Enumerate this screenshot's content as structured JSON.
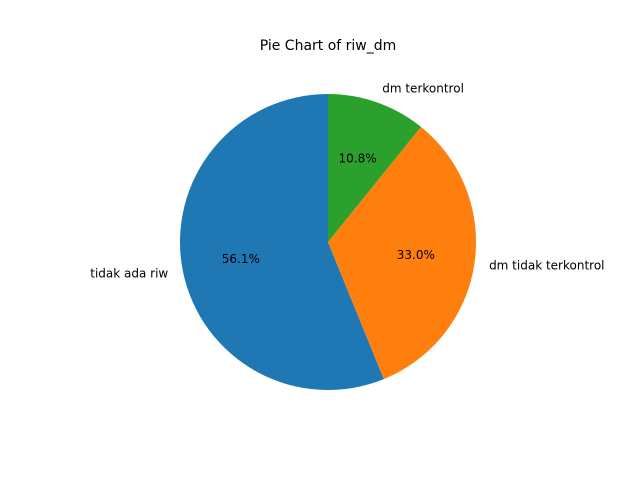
{
  "chart_data": {
    "type": "pie",
    "title": "Pie Chart of riw_dm",
    "start_angle_deg": 90,
    "direction": "counterclockwise",
    "slices": [
      {
        "label": "tidak ada riw",
        "value": 56.1,
        "pct_label": "56.1%",
        "color": "#1f77b4"
      },
      {
        "label": "dm tidak terkontrol",
        "value": 33.0,
        "pct_label": "33.0%",
        "color": "#ff7f0e"
      },
      {
        "label": "dm terkontrol",
        "value": 10.8,
        "pct_label": "10.8%",
        "color": "#2ca02c"
      }
    ]
  }
}
